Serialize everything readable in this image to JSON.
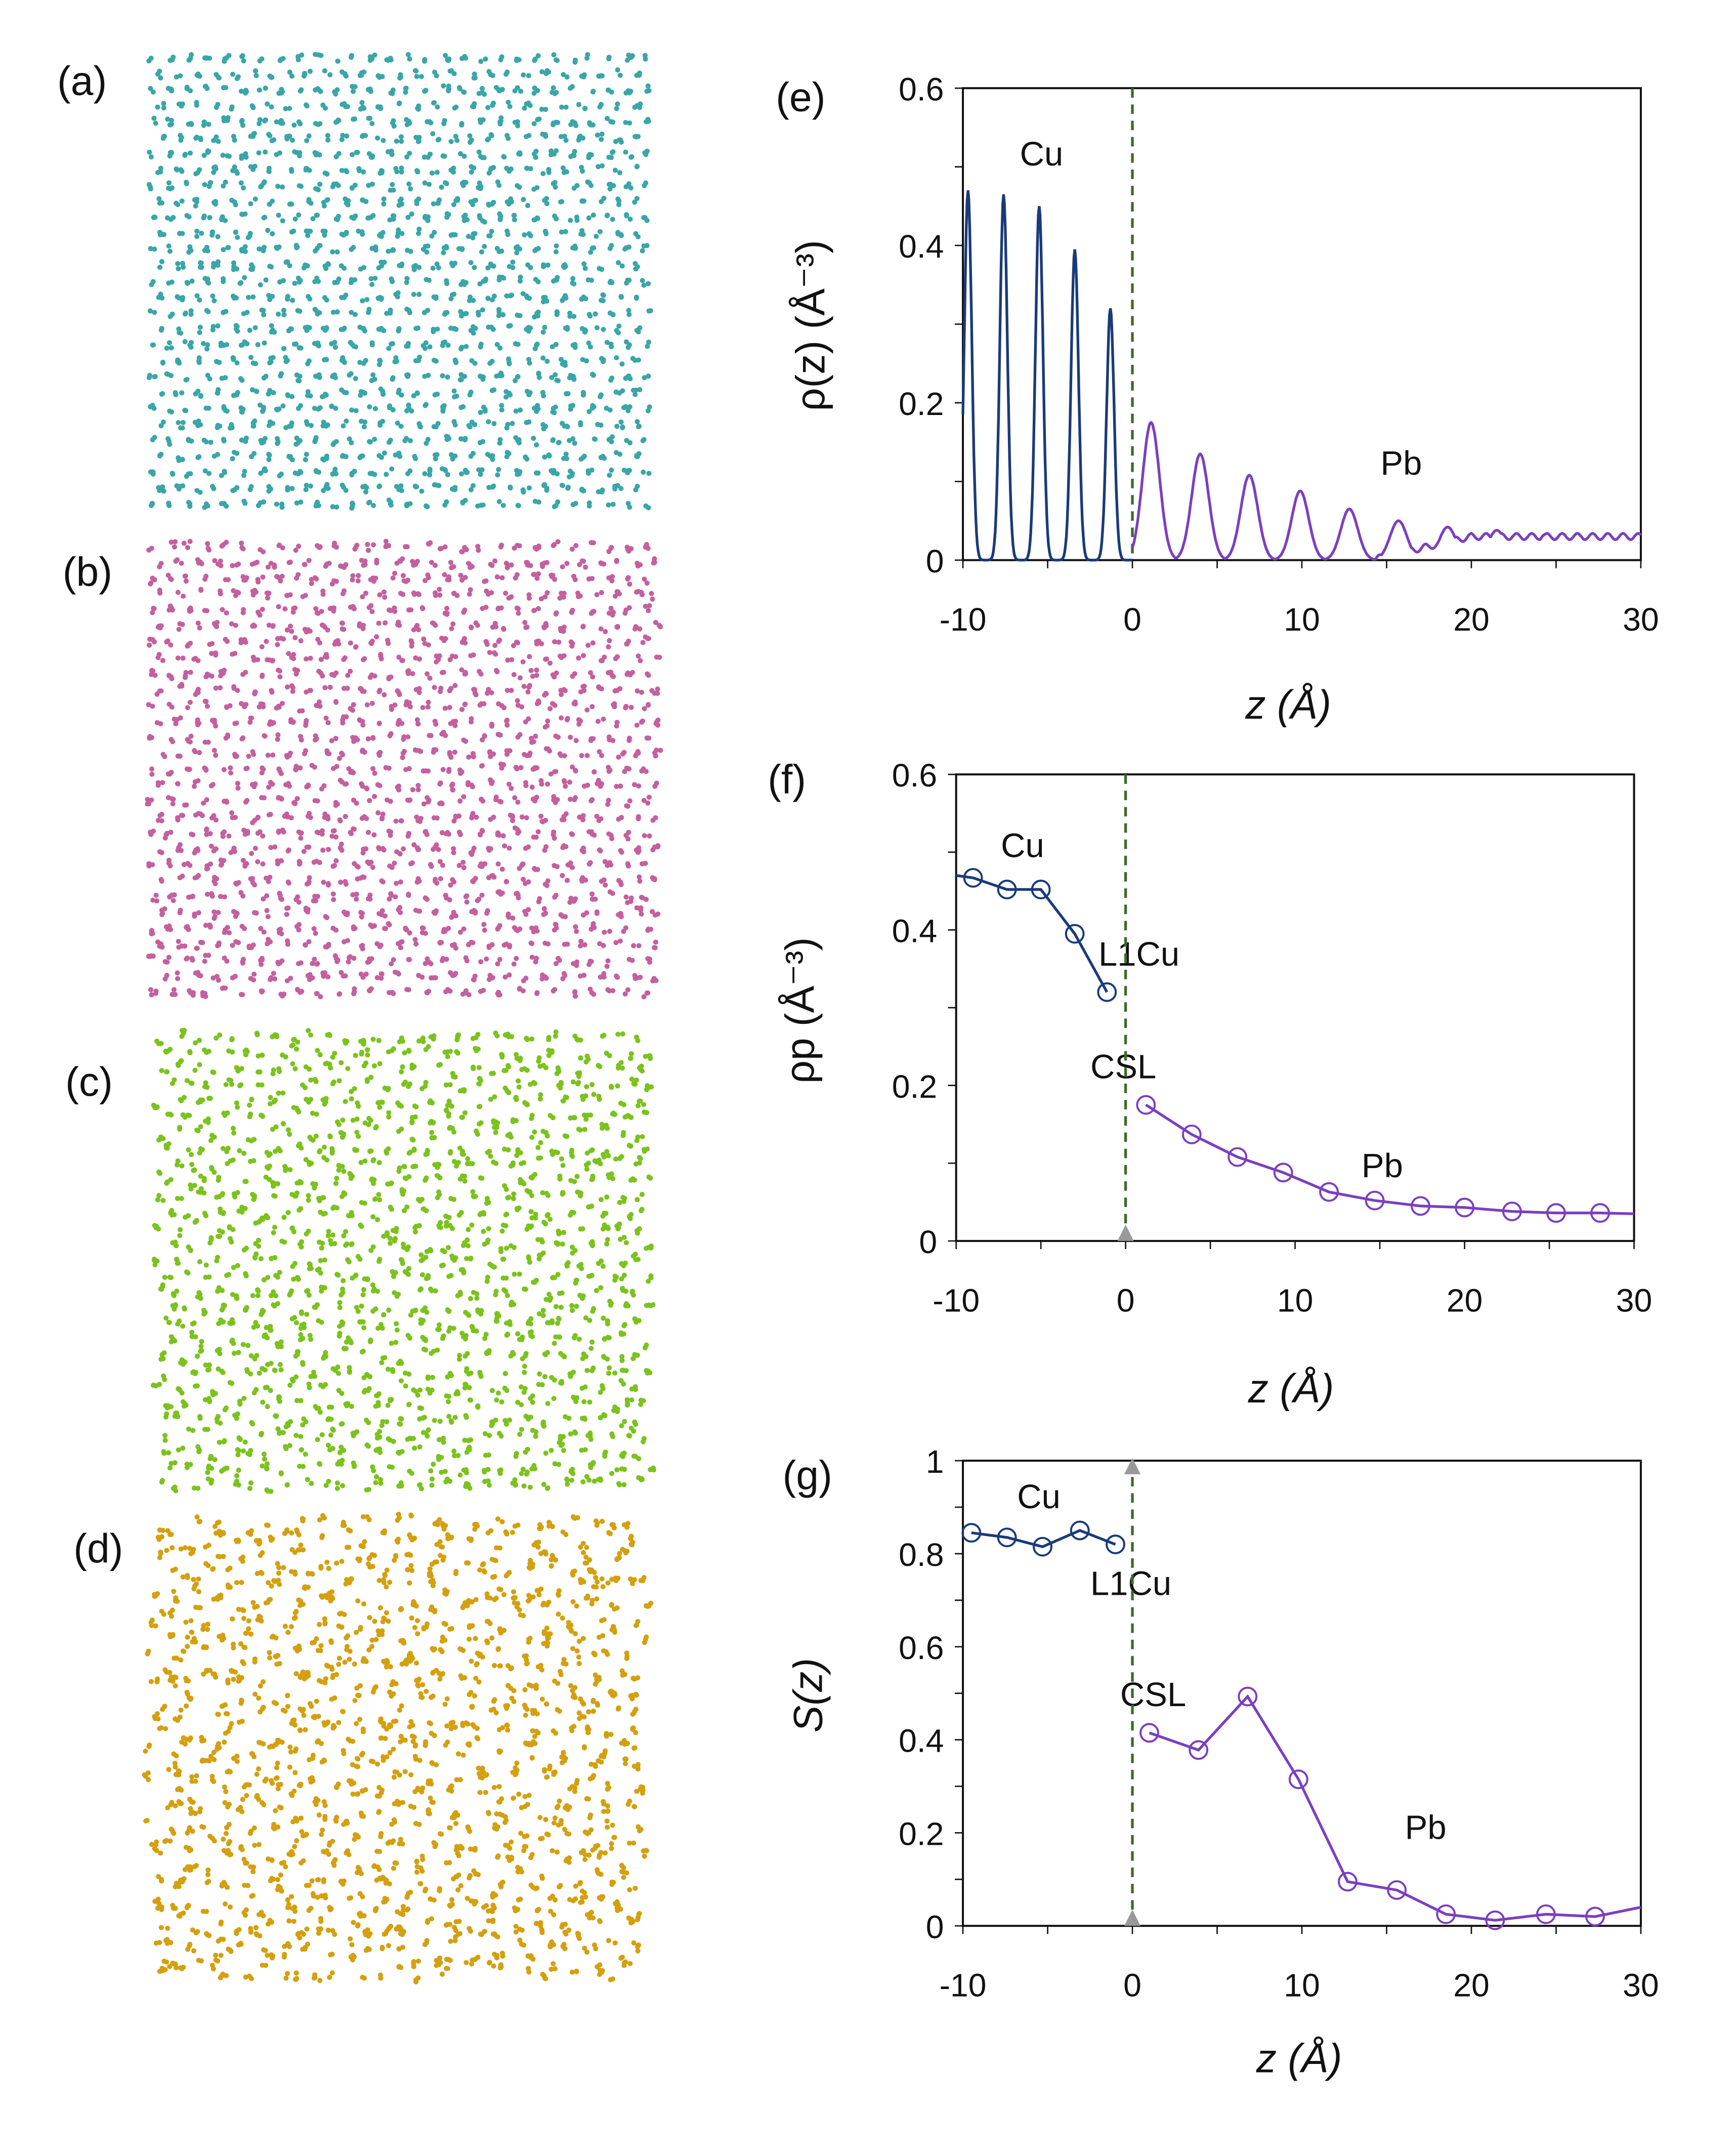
{
  "panels": {
    "a": {
      "label": "(a)",
      "color": "#3aa6a8",
      "order": 0.9
    },
    "b": {
      "label": "(b)",
      "color": "#c4609f",
      "order": 0.8
    },
    "c": {
      "label": "(c)",
      "color": "#7cc21e",
      "order": 0.55
    },
    "d": {
      "label": "(d)",
      "color": "#d4a010",
      "order": 0.25
    }
  },
  "colors": {
    "cu": "#1a3a7a",
    "pb": "#7b3fbf",
    "csl_line": "#3d6b2a",
    "marker": "#999999"
  },
  "chart_data": [
    {
      "id": "e",
      "panel_label": "(e)",
      "type": "line",
      "xlabel": "z (Å)",
      "ylabel": "ρ(z) (Å⁻³)",
      "xlim": [
        -10,
        30
      ],
      "ylim": [
        0,
        0.6
      ],
      "xticks": [
        "-10",
        "0",
        "10",
        "20",
        "30"
      ],
      "yticks": [
        "0",
        "0.2",
        "0.4",
        "0.6"
      ],
      "annotations": [
        "Cu",
        "Pb"
      ],
      "series": [
        {
          "name": "Cu",
          "peak_z": [
            -9.7,
            -7.6,
            -5.5,
            -3.4,
            -1.3
          ],
          "peak_rho": [
            0.47,
            0.465,
            0.45,
            0.395,
            0.32
          ],
          "width": 0.22
        },
        {
          "name": "Pb",
          "peak_z": [
            1.1,
            4.0,
            6.9,
            9.9,
            12.8,
            15.7,
            18.6,
            21.5,
            24.4
          ],
          "peak_rho": [
            0.175,
            0.135,
            0.108,
            0.088,
            0.065,
            0.05,
            0.042,
            0.038,
            0.033
          ],
          "width": 0.5,
          "baseline": 0.03
        }
      ],
      "divider_z": 0
    },
    {
      "id": "f",
      "panel_label": "(f)",
      "type": "line",
      "xlabel": "z (Å)",
      "ylabel": "ρp (Å⁻³)",
      "xlim": [
        -10,
        30
      ],
      "ylim": [
        0,
        0.6
      ],
      "xticks": [
        "-10",
        "0",
        "10",
        "20",
        "30"
      ],
      "yticks": [
        "0",
        "0.2",
        "0.4",
        "0.6"
      ],
      "annotations": [
        "Cu",
        "L1Cu",
        "CSL",
        "Pb"
      ],
      "series": [
        {
          "name": "Cu",
          "x": [
            -9.0,
            -7.0,
            -5.0,
            -3.0,
            -1.1
          ],
          "y": [
            0.467,
            0.452,
            0.452,
            0.395,
            0.32
          ],
          "line_from": -10,
          "line_from_y": 0.47
        },
        {
          "name": "Pb",
          "x": [
            1.2,
            3.9,
            6.6,
            9.3,
            12.0,
            14.7,
            17.4,
            20.0,
            22.8,
            25.4,
            28.0
          ],
          "y": [
            0.175,
            0.137,
            0.108,
            0.088,
            0.063,
            0.052,
            0.045,
            0.043,
            0.038,
            0.036,
            0.036
          ],
          "line_to": 30,
          "line_to_y": 0.035
        }
      ],
      "divider_z": 0
    },
    {
      "id": "g",
      "panel_label": "(g)",
      "type": "line",
      "xlabel": "z (Å)",
      "ylabel": "S(z)",
      "xlim": [
        -10,
        30
      ],
      "ylim": [
        0,
        1
      ],
      "xticks": [
        "-10",
        "0",
        "10",
        "20",
        "30"
      ],
      "yticks": [
        "0",
        "0.2",
        "0.4",
        "0.6",
        "0.8",
        "1"
      ],
      "annotations": [
        "Cu",
        "L1Cu",
        "CSL",
        "Pb"
      ],
      "series": [
        {
          "name": "Cu",
          "x": [
            -9.5,
            -7.4,
            -5.3,
            -3.1,
            -1.0
          ],
          "y": [
            0.845,
            0.835,
            0.815,
            0.85,
            0.82
          ]
        },
        {
          "name": "Pb",
          "x": [
            1.0,
            3.9,
            6.8,
            9.8,
            12.7,
            15.6,
            18.5,
            21.4,
            24.4,
            27.3
          ],
          "y": [
            0.415,
            0.378,
            0.493,
            0.315,
            0.095,
            0.077,
            0.025,
            0.012,
            0.025,
            0.02
          ],
          "line_to": 30,
          "line_to_y": 0.04
        }
      ],
      "divider_z": 0
    }
  ]
}
